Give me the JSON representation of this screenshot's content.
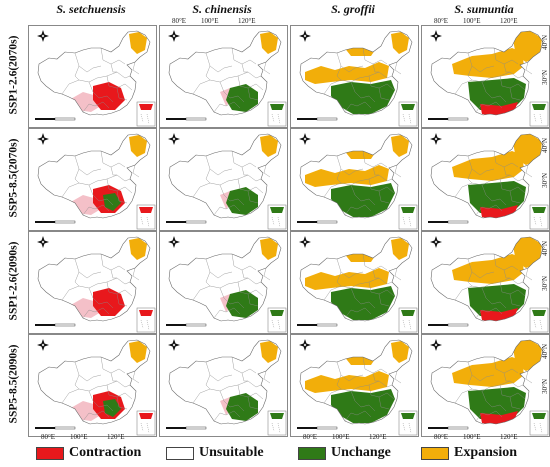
{
  "columns": [
    "S. setchuensis",
    "S. chinensis",
    "S. groffii",
    "S. sumuntia"
  ],
  "rows": [
    "SSP1-2.6(2070s)",
    "SSP5-8.5(2070s)",
    "SSP1-2.6(2090s)",
    "SSP5-8.5(2090s)"
  ],
  "axis": {
    "top": [
      "80°E",
      "100°E",
      "120°E"
    ],
    "bottom": [
      "80°E",
      "100°E",
      "120°E"
    ],
    "right": [
      "40°N",
      "30°N"
    ]
  },
  "legend": [
    {
      "label": "Contraction",
      "color": "#e8181c"
    },
    {
      "label": "Unsuitable",
      "color": "#ffffff"
    },
    {
      "label": "Unchange",
      "color": "#2f7a17"
    },
    {
      "label": "Expansion",
      "color": "#f2ae0a"
    }
  ],
  "colors": {
    "contraction": "#e8181c",
    "contraction_light": "#f4c0c8",
    "unchange": "#2f7a17",
    "expansion": "#f2ae0a",
    "border": "#8a8a8a"
  },
  "icons": [
    "compass-icon",
    "scale-bar-icon",
    "south-china-sea-inset-icon"
  ]
}
